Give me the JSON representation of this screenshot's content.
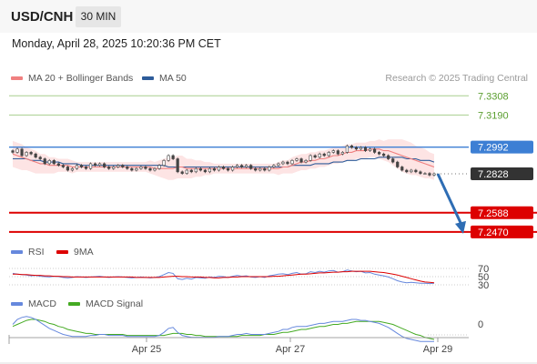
{
  "header": {
    "pair": "USD/CNH",
    "interval": "30 MIN"
  },
  "datetime": "Monday, April 28, 2025 10:20:36 PM CET",
  "legend_main": [
    {
      "label": "MA 20 + Bollinger Bands",
      "color": "#f08080"
    },
    {
      "label": "MA 50",
      "color": "#2e5c9a"
    }
  ],
  "credit": "Research © 2025 Trading Central",
  "legend_rsi": [
    {
      "label": "RSI",
      "color": "#6688dd"
    },
    {
      "label": "9MA",
      "color": "#dd0000"
    }
  ],
  "legend_macd": [
    {
      "label": "MACD",
      "color": "#6688dd"
    },
    {
      "label": "MACD Signal",
      "color": "#44aa22"
    }
  ],
  "colors": {
    "resistance": "#5a9e2f",
    "support": "#dd0000",
    "pivot": "#3d7fd4",
    "current": "#333333",
    "arrow": "#2e6db4",
    "band": "#fde4e4",
    "ma20": "#f08080",
    "ma50": "#2e5c9a",
    "up_candle": "#ffffff",
    "down_candle": "#444444"
  },
  "chart_data": [
    {
      "type": "candlestick",
      "x_axis": {
        "ticks": [
          "Apr 25",
          "Apr 27",
          "Apr 29"
        ]
      },
      "y_range": [
        7.243,
        7.336
      ],
      "levels": [
        {
          "value": 7.3308,
          "label": "7.3308",
          "kind": "resistance"
        },
        {
          "value": 7.319,
          "label": "7.3190",
          "kind": "resistance"
        },
        {
          "value": 7.2992,
          "label": "7.2992",
          "kind": "pivot"
        },
        {
          "value": 7.2828,
          "label": "7.2828",
          "kind": "current"
        },
        {
          "value": 7.2588,
          "label": "7.2588",
          "kind": "support"
        },
        {
          "value": 7.247,
          "label": "7.2470",
          "kind": "support"
        }
      ],
      "closes": [
        7.296,
        7.298,
        7.294,
        7.296,
        7.295,
        7.293,
        7.292,
        7.289,
        7.291,
        7.289,
        7.288,
        7.287,
        7.285,
        7.286,
        7.288,
        7.287,
        7.286,
        7.289,
        7.288,
        7.289,
        7.287,
        7.286,
        7.287,
        7.288,
        7.287,
        7.286,
        7.285,
        7.286,
        7.287,
        7.286,
        7.285,
        7.286,
        7.288,
        7.291,
        7.294,
        7.292,
        7.284,
        7.283,
        7.285,
        7.284,
        7.286,
        7.285,
        7.284,
        7.286,
        7.285,
        7.287,
        7.286,
        7.285,
        7.287,
        7.288,
        7.287,
        7.288,
        7.286,
        7.285,
        7.286,
        7.285,
        7.287,
        7.288,
        7.289,
        7.29,
        7.289,
        7.291,
        7.292,
        7.29,
        7.291,
        7.294,
        7.293,
        7.295,
        7.294,
        7.296,
        7.297,
        7.295,
        7.296,
        7.3,
        7.299,
        7.298,
        7.299,
        7.297,
        7.298,
        7.296,
        7.295,
        7.294,
        7.292,
        7.29,
        7.287,
        7.285,
        7.284,
        7.285,
        7.284,
        7.283,
        7.283,
        7.282,
        7.2828
      ],
      "ma20": [
        7.295,
        7.294,
        7.293,
        7.292,
        7.291,
        7.29,
        7.289,
        7.289,
        7.288,
        7.288,
        7.288,
        7.288,
        7.288,
        7.287,
        7.287,
        7.287,
        7.287,
        7.287,
        7.287,
        7.287,
        7.287,
        7.287,
        7.287,
        7.287,
        7.287,
        7.287,
        7.287,
        7.287,
        7.287,
        7.287,
        7.287,
        7.286,
        7.286,
        7.286,
        7.286,
        7.286,
        7.287,
        7.287,
        7.286,
        7.286,
        7.286,
        7.286,
        7.286,
        7.286,
        7.286,
        7.286,
        7.286,
        7.286,
        7.286,
        7.286,
        7.286,
        7.286,
        7.286,
        7.286,
        7.286,
        7.286,
        7.286,
        7.286,
        7.286,
        7.287,
        7.287,
        7.288,
        7.289,
        7.29,
        7.29,
        7.291,
        7.291,
        7.292,
        7.292,
        7.293,
        7.294,
        7.294,
        7.295,
        7.296,
        7.296,
        7.297,
        7.297,
        7.297,
        7.298,
        7.298,
        7.298,
        7.297,
        7.297,
        7.296,
        7.295,
        7.294,
        7.293,
        7.292,
        7.291,
        7.29,
        7.289,
        7.288,
        7.287
      ],
      "ma50": [
        7.292,
        7.292,
        7.292,
        7.292,
        7.291,
        7.291,
        7.291,
        7.29,
        7.29,
        7.29,
        7.29,
        7.289,
        7.289,
        7.289,
        7.289,
        7.288,
        7.288,
        7.288,
        7.288,
        7.288,
        7.288,
        7.288,
        7.288,
        7.288,
        7.288,
        7.288,
        7.288,
        7.288,
        7.288,
        7.288,
        7.288,
        7.288,
        7.288,
        7.288,
        7.287,
        7.287,
        7.287,
        7.287,
        7.287,
        7.287,
        7.287,
        7.287,
        7.287,
        7.287,
        7.287,
        7.287,
        7.287,
        7.287,
        7.287,
        7.287,
        7.287,
        7.287,
        7.287,
        7.287,
        7.287,
        7.287,
        7.287,
        7.287,
        7.287,
        7.287,
        7.287,
        7.288,
        7.288,
        7.288,
        7.288,
        7.288,
        7.289,
        7.289,
        7.289,
        7.289,
        7.29,
        7.29,
        7.29,
        7.291,
        7.291,
        7.291,
        7.292,
        7.292,
        7.292,
        7.292,
        7.293,
        7.293,
        7.293,
        7.293,
        7.293,
        7.293,
        7.292,
        7.292,
        7.292,
        7.291,
        7.291,
        7.291,
        7.29
      ],
      "band_half_width": [
        0.008,
        0.008,
        0.008,
        0.007,
        0.007,
        0.007,
        0.006,
        0.006,
        0.005,
        0.005,
        0.004,
        0.004,
        0.004,
        0.004,
        0.003,
        0.003,
        0.003,
        0.003,
        0.003,
        0.003,
        0.003,
        0.003,
        0.003,
        0.003,
        0.003,
        0.003,
        0.003,
        0.003,
        0.003,
        0.003,
        0.004,
        0.004,
        0.005,
        0.006,
        0.007,
        0.007,
        0.007,
        0.007,
        0.006,
        0.006,
        0.005,
        0.005,
        0.004,
        0.004,
        0.003,
        0.003,
        0.003,
        0.003,
        0.003,
        0.003,
        0.003,
        0.003,
        0.003,
        0.003,
        0.003,
        0.003,
        0.003,
        0.003,
        0.004,
        0.004,
        0.004,
        0.005,
        0.005,
        0.005,
        0.005,
        0.005,
        0.005,
        0.005,
        0.005,
        0.005,
        0.005,
        0.005,
        0.005,
        0.005,
        0.005,
        0.005,
        0.005,
        0.005,
        0.005,
        0.005,
        0.006,
        0.006,
        0.007,
        0.008,
        0.009,
        0.01,
        0.01,
        0.01,
        0.009,
        0.009,
        0.009,
        0.008,
        0.008
      ],
      "forecast_arrow": {
        "from": 7.2828,
        "to": 7.247
      }
    },
    {
      "type": "line",
      "name": "RSI",
      "y_range": [
        30,
        70
      ],
      "y_ticks": [
        70,
        50,
        30
      ],
      "rsi": [
        58,
        56,
        55,
        54,
        52,
        53,
        51,
        50,
        49,
        51,
        50,
        48,
        47,
        48,
        50,
        49,
        48,
        49,
        50,
        51,
        49,
        48,
        49,
        50,
        49,
        48,
        47,
        48,
        49,
        48,
        47,
        48,
        50,
        55,
        60,
        58,
        45,
        43,
        46,
        44,
        48,
        47,
        46,
        49,
        48,
        51,
        50,
        48,
        51,
        53,
        51,
        52,
        49,
        48,
        50,
        48,
        52,
        54,
        56,
        57,
        55,
        58,
        60,
        56,
        57,
        62,
        60,
        63,
        61,
        64,
        65,
        61,
        62,
        66,
        64,
        62,
        63,
        59,
        60,
        56,
        54,
        52,
        49,
        45,
        40,
        37,
        35,
        36,
        35,
        34,
        34,
        33,
        34
      ],
      "ma9": [
        56,
        56,
        55,
        55,
        54,
        53,
        53,
        52,
        52,
        51,
        51,
        50,
        50,
        49,
        49,
        49,
        49,
        49,
        49,
        49,
        49,
        49,
        49,
        49,
        49,
        49,
        49,
        48,
        48,
        48,
        48,
        48,
        48,
        49,
        50,
        51,
        51,
        50,
        50,
        49,
        49,
        49,
        48,
        48,
        47,
        47,
        48,
        48,
        49,
        49,
        50,
        50,
        50,
        50,
        50,
        50,
        50,
        51,
        51,
        52,
        53,
        54,
        55,
        56,
        56,
        57,
        58,
        59,
        59,
        60,
        61,
        61,
        62,
        62,
        63,
        63,
        63,
        63,
        63,
        62,
        61,
        60,
        58,
        56,
        54,
        51,
        48,
        45,
        42,
        39,
        37,
        36,
        35
      ]
    },
    {
      "type": "line",
      "name": "MACD",
      "y_ticks": [
        0
      ],
      "macd": [
        0.0005,
        0.001,
        0.0012,
        0.0013,
        0.0012,
        0.001,
        0.0007,
        0.0004,
        0.0001,
        -0.0001,
        -0.0003,
        -0.0005,
        -0.0006,
        -0.0007,
        -0.0007,
        -0.0007,
        -0.0007,
        -0.0006,
        -0.0006,
        -0.0005,
        -0.0005,
        -0.0006,
        -0.0006,
        -0.0006,
        -0.0006,
        -0.0007,
        -0.0007,
        -0.0007,
        -0.0007,
        -0.0007,
        -0.0007,
        -0.0007,
        -0.0006,
        -0.0003,
        0.0001,
        0.0002,
        -0.0003,
        -0.0006,
        -0.0007,
        -0.0008,
        -0.0008,
        -0.0008,
        -0.0008,
        -0.0008,
        -0.0008,
        -0.0007,
        -0.0007,
        -0.0007,
        -0.0006,
        -0.0005,
        -0.0005,
        -0.0004,
        -0.0005,
        -0.0005,
        -0.0005,
        -0.0005,
        -0.0004,
        -0.0003,
        -0.0002,
        0.0,
        0.0,
        0.0002,
        0.0003,
        0.0003,
        0.0003,
        0.0004,
        0.0005,
        0.0006,
        0.0006,
        0.0007,
        0.0008,
        0.0008,
        0.0008,
        0.0009,
        0.001,
        0.001,
        0.0009,
        0.0009,
        0.0008,
        0.0007,
        0.0006,
        0.0004,
        0.0002,
        -0.0001,
        -0.0004,
        -0.0007,
        -0.0009,
        -0.001,
        -0.0011,
        -0.0012,
        -0.0012,
        -0.0012,
        -0.0012
      ],
      "signal": [
        0.0003,
        0.0005,
        0.0007,
        0.0009,
        0.001,
        0.001,
        0.0009,
        0.0008,
        0.0006,
        0.0005,
        0.0003,
        0.0002,
        0.0,
        -0.0001,
        -0.0002,
        -0.0003,
        -0.0004,
        -0.0004,
        -0.0005,
        -0.0005,
        -0.0005,
        -0.0005,
        -0.0005,
        -0.0005,
        -0.0005,
        -0.0006,
        -0.0006,
        -0.0006,
        -0.0006,
        -0.0006,
        -0.0006,
        -0.0006,
        -0.0006,
        -0.0006,
        -0.0005,
        -0.0004,
        -0.0004,
        -0.0004,
        -0.0005,
        -0.0005,
        -0.0006,
        -0.0006,
        -0.0007,
        -0.0007,
        -0.0007,
        -0.0007,
        -0.0007,
        -0.0007,
        -0.0007,
        -0.0007,
        -0.0006,
        -0.0006,
        -0.0006,
        -0.0006,
        -0.0006,
        -0.0005,
        -0.0005,
        -0.0005,
        -0.0004,
        -0.0003,
        -0.0003,
        -0.0002,
        -0.0001,
        0.0,
        0.0,
        0.0001,
        0.0002,
        0.0003,
        0.0003,
        0.0004,
        0.0005,
        0.0005,
        0.0006,
        0.0006,
        0.0007,
        0.0008,
        0.0008,
        0.0008,
        0.0008,
        0.0008,
        0.0008,
        0.0007,
        0.0006,
        0.0005,
        0.0003,
        0.0001,
        -0.0001,
        -0.0003,
        -0.0005,
        -0.0006,
        -0.0008,
        -0.0009,
        -0.001
      ]
    }
  ]
}
